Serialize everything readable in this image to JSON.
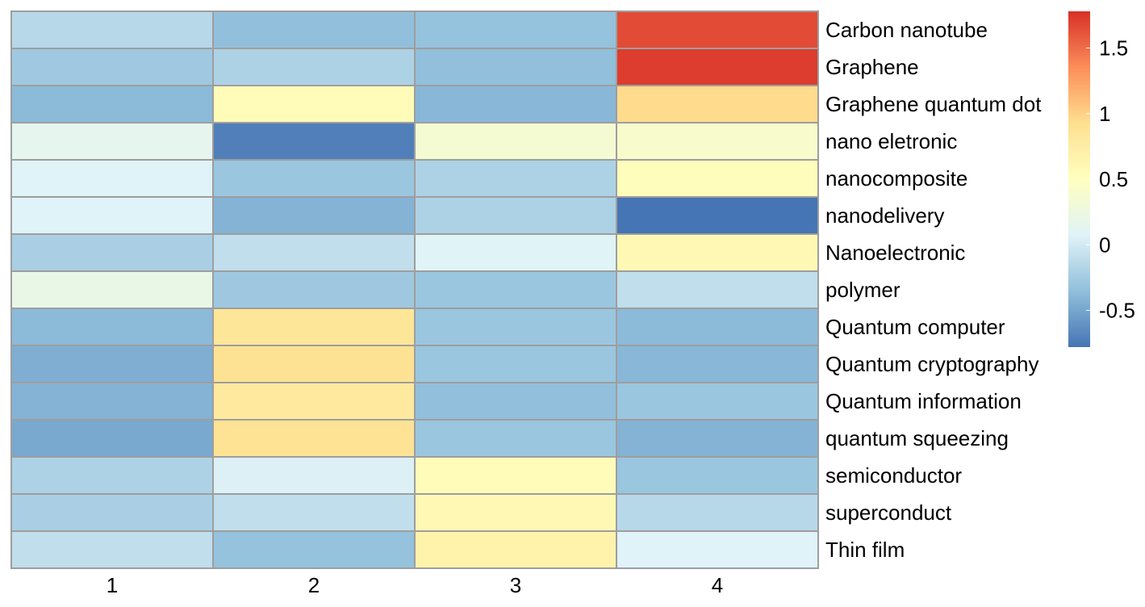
{
  "chart_data": {
    "type": "heatmap",
    "title": "",
    "xlabel": "",
    "ylabel": "",
    "columns": [
      "1",
      "2",
      "3",
      "4"
    ],
    "rows": [
      "Carbon nanotube",
      "Graphene",
      "Graphene quantum dot",
      "nano eletronic",
      "nanocomposite",
      "nanodelivery",
      "Nanoelectronic",
      "polymer",
      "Quantum computer",
      "Quantum cryptography",
      "Quantum information",
      "quantum squeezing",
      "semiconductor",
      "superconduct",
      "Thin film"
    ],
    "values": [
      [
        -0.15,
        -0.35,
        -0.33,
        1.65
      ],
      [
        -0.27,
        -0.2,
        -0.35,
        1.72
      ],
      [
        -0.38,
        0.55,
        -0.4,
        0.95
      ],
      [
        0.15,
        -0.72,
        0.35,
        0.4
      ],
      [
        0.07,
        -0.3,
        -0.2,
        0.53
      ],
      [
        0.07,
        -0.42,
        -0.2,
        -0.78
      ],
      [
        -0.22,
        -0.1,
        0.08,
        0.6
      ],
      [
        0.2,
        -0.28,
        -0.3,
        -0.1
      ],
      [
        -0.38,
        0.85,
        -0.3,
        -0.38
      ],
      [
        -0.45,
        0.9,
        -0.3,
        -0.4
      ],
      [
        -0.42,
        0.8,
        -0.35,
        -0.3
      ],
      [
        -0.48,
        0.88,
        -0.3,
        -0.42
      ],
      [
        -0.2,
        0.05,
        0.55,
        -0.3
      ],
      [
        -0.22,
        -0.1,
        0.6,
        -0.15
      ],
      [
        -0.1,
        -0.33,
        0.67,
        0.07
      ]
    ],
    "color_scale": {
      "min": -0.78,
      "max": 1.78,
      "stops": [
        "#4575B4",
        "#91BFDB",
        "#E0F3F8",
        "#FFFFBF",
        "#FEE090",
        "#FC8D59",
        "#D73027"
      ],
      "ticks": [
        "1.5",
        "1",
        "0.5",
        "0",
        "-0.5"
      ],
      "tick_values": [
        1.5,
        1,
        0.5,
        0,
        -0.5
      ]
    },
    "grid": true,
    "cell_border_color": "#9E9E9E",
    "legend": "right"
  }
}
